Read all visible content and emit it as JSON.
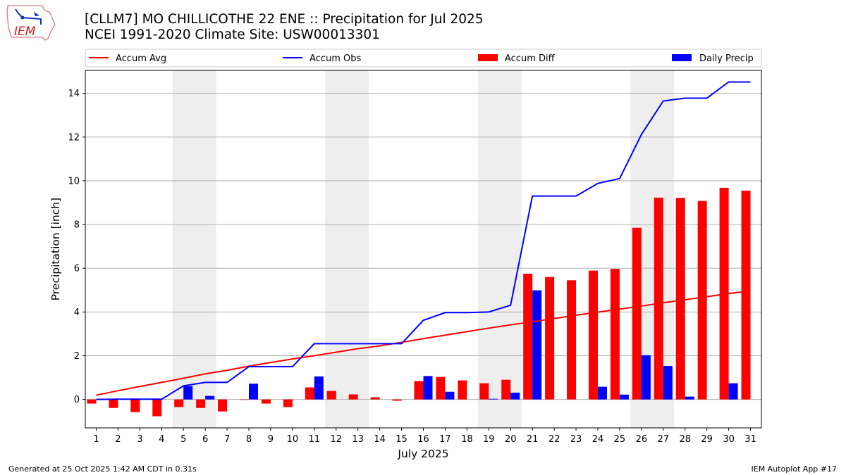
{
  "header": {
    "logo_text": "IEM",
    "title_line1": "[CLLM7] MO CHILLICOTHE 22 ENE :: Precipitation for Jul 2025",
    "title_line2": "NCEI 1991-2020 Climate Site: USW00013301"
  },
  "footer": {
    "generated": "Generated at 25 Oct 2025 1:42 AM CDT in 0.31s",
    "app": "IEM Autoplot App #17"
  },
  "chart_data": {
    "type": "bar",
    "xlabel": "July 2025",
    "ylabel": "Precipitation [inch]",
    "categories": [
      "1",
      "2",
      "3",
      "4",
      "5",
      "6",
      "7",
      "8",
      "9",
      "10",
      "11",
      "12",
      "13",
      "14",
      "15",
      "16",
      "17",
      "18",
      "19",
      "20",
      "21",
      "22",
      "23",
      "24",
      "25",
      "26",
      "27",
      "28",
      "29",
      "30",
      "31"
    ],
    "ylim": [
      -1.3,
      15.05
    ],
    "yticks": [
      0,
      2,
      4,
      6,
      8,
      10,
      12,
      14
    ],
    "grid": true,
    "legend_placement": "top",
    "weekend_shaded_days": [
      5,
      6,
      12,
      13,
      19,
      20,
      26,
      27
    ],
    "colors": {
      "accum_avg": "#ff0000",
      "accum_obs": "#0000ff",
      "accum_diff": "#ff0000",
      "daily": "#0000ff",
      "weekend": "#eeeeee"
    },
    "series": [
      {
        "name": "Accum Avg",
        "kind": "line",
        "values": [
          0.19,
          0.4,
          0.59,
          0.78,
          0.97,
          1.17,
          1.33,
          1.52,
          1.69,
          1.85,
          2.0,
          2.16,
          2.32,
          2.45,
          2.61,
          2.78,
          2.94,
          3.1,
          3.26,
          3.41,
          3.55,
          3.7,
          3.85,
          3.99,
          4.13,
          4.27,
          4.42,
          4.56,
          4.7,
          4.84,
          4.97
        ]
      },
      {
        "name": "Accum Obs",
        "kind": "line",
        "values": [
          0.0,
          0.01,
          0.01,
          0.01,
          0.62,
          0.78,
          0.78,
          1.5,
          1.5,
          1.5,
          2.55,
          2.55,
          2.55,
          2.55,
          2.55,
          3.62,
          3.97,
          3.97,
          4.0,
          4.31,
          9.3,
          9.3,
          9.3,
          9.88,
          10.1,
          12.12,
          13.65,
          13.78,
          13.78,
          14.52,
          14.52
        ]
      },
      {
        "name": "Accum Diff",
        "kind": "bar",
        "values": [
          -0.19,
          -0.39,
          -0.58,
          -0.77,
          -0.35,
          -0.39,
          -0.55,
          -0.02,
          -0.19,
          -0.35,
          0.55,
          0.39,
          0.23,
          0.1,
          -0.06,
          0.84,
          1.03,
          0.87,
          0.74,
          0.9,
          5.75,
          5.6,
          5.45,
          5.89,
          5.97,
          7.85,
          9.23,
          9.22,
          9.08,
          9.68,
          9.55
        ]
      },
      {
        "name": "Daily Precip",
        "kind": "bar",
        "values": [
          0,
          0.01,
          0,
          0,
          0.61,
          0.16,
          0,
          0.72,
          0,
          0,
          1.05,
          0,
          0,
          0,
          0,
          1.07,
          0.35,
          0,
          0.03,
          0.31,
          4.99,
          0,
          0,
          0.58,
          0.22,
          2.02,
          1.53,
          0.13,
          0,
          0.74,
          0
        ]
      }
    ]
  }
}
